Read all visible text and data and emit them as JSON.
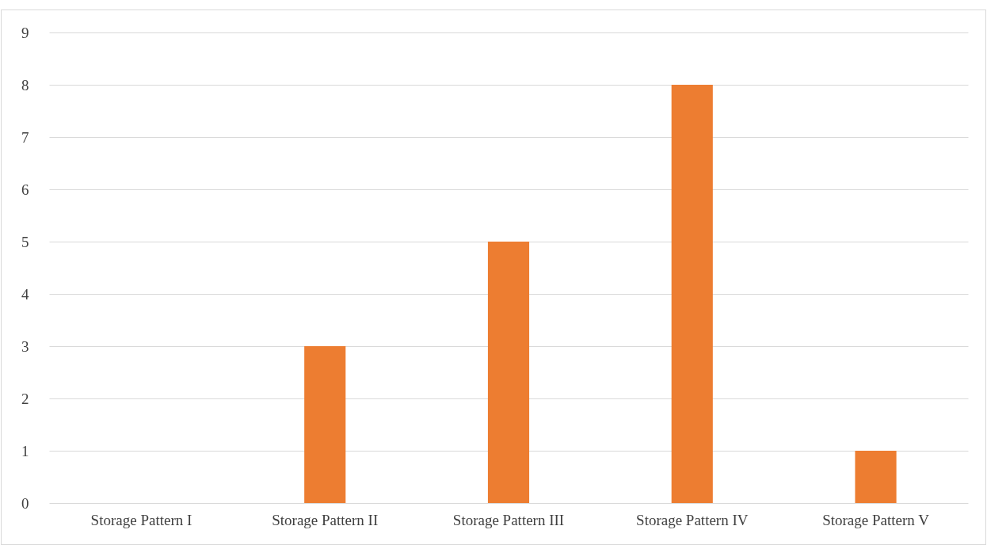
{
  "chart_data": {
    "type": "bar",
    "categories": [
      "Storage Pattern I",
      "Storage Pattern II",
      "Storage Pattern III",
      "Storage Pattern IV",
      "Storage Pattern V"
    ],
    "values": [
      0,
      3,
      5,
      8,
      1
    ],
    "color": "#ed7d31",
    "ylim": [
      0,
      9
    ],
    "yticks": [
      0,
      1,
      2,
      3,
      4,
      5,
      6,
      7,
      8,
      9
    ],
    "grid": "y",
    "legend": false
  }
}
